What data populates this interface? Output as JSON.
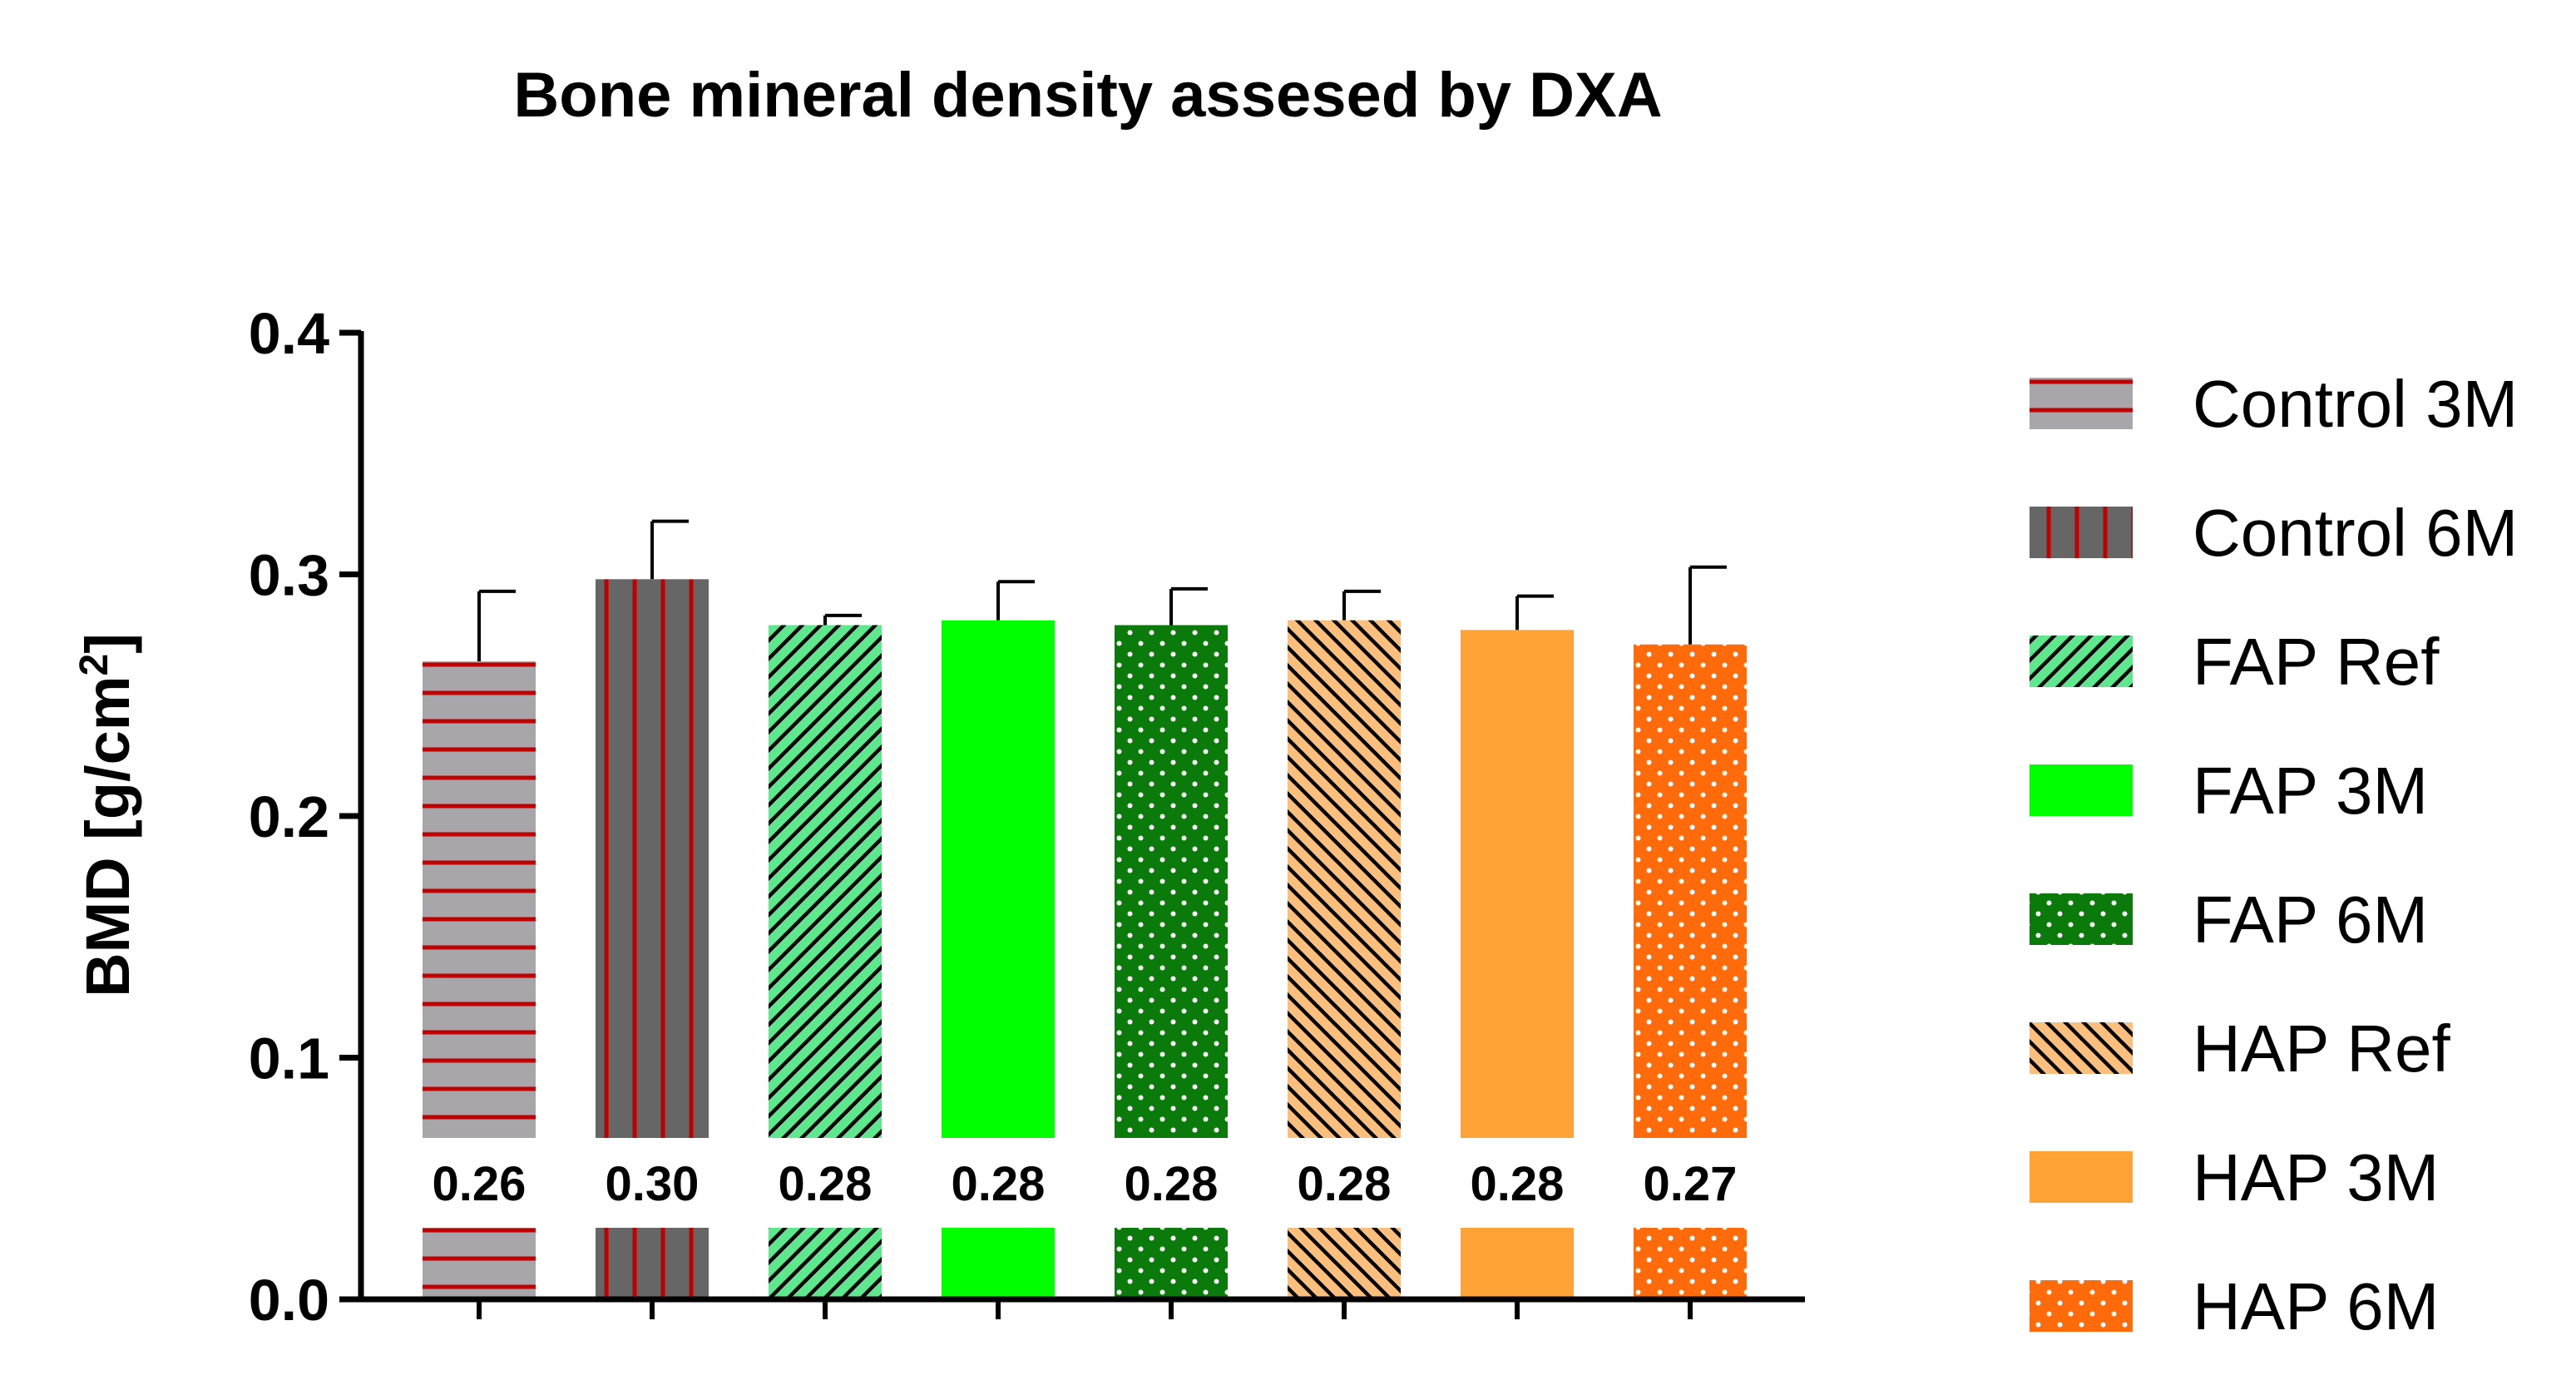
{
  "chart_data": {
    "type": "bar",
    "title": "Bone mineral density assesed by DXA",
    "ylabel": "BMD [g/cm",
    "ylabel_sup": "2",
    "ylabel_close": "]",
    "xlabel": "",
    "ylim": [
      0.0,
      0.4
    ],
    "yticks": [
      {
        "value": 0.0,
        "label": "0.0"
      },
      {
        "value": 0.1,
        "label": "0.1"
      },
      {
        "value": 0.2,
        "label": "0.2"
      },
      {
        "value": 0.3,
        "label": "0.3"
      },
      {
        "value": 0.4,
        "label": "0.4"
      }
    ],
    "legend_position": "right",
    "series": [
      {
        "name": "Control 3M",
        "value": 0.264,
        "error": 0.029,
        "label": "0.26",
        "fill": "#a8a6aa",
        "pattern": "hlines",
        "pattern_color": "#c00000"
      },
      {
        "name": "Control 6M",
        "value": 0.298,
        "error": 0.024,
        "label": "0.30",
        "fill": "#666666",
        "pattern": "vlines",
        "pattern_color": "#c00000"
      },
      {
        "name": "FAP Ref",
        "value": 0.279,
        "error": 0.004,
        "label": "0.28",
        "fill": "#5ee88e",
        "pattern": "diag-up",
        "pattern_color": "#000000"
      },
      {
        "name": "FAP 3M",
        "value": 0.281,
        "error": 0.016,
        "label": "0.28",
        "fill": "#00ff00",
        "pattern": "none",
        "pattern_color": ""
      },
      {
        "name": "FAP 6M",
        "value": 0.279,
        "error": 0.015,
        "label": "0.28",
        "fill": "#0a7a0a",
        "pattern": "dots",
        "pattern_color": "#ffffff"
      },
      {
        "name": "HAP Ref",
        "value": 0.281,
        "error": 0.012,
        "label": "0.28",
        "fill": "#fbbf7d",
        "pattern": "diag-down",
        "pattern_color": "#000000"
      },
      {
        "name": "HAP 3M",
        "value": 0.277,
        "error": 0.014,
        "label": "0.28",
        "fill": "#ffa337",
        "pattern": "none",
        "pattern_color": ""
      },
      {
        "name": "HAP 6M",
        "value": 0.271,
        "error": 0.032,
        "label": "0.27",
        "fill": "#ff6a0a",
        "pattern": "dots",
        "pattern_color": "#ffffff"
      }
    ]
  }
}
